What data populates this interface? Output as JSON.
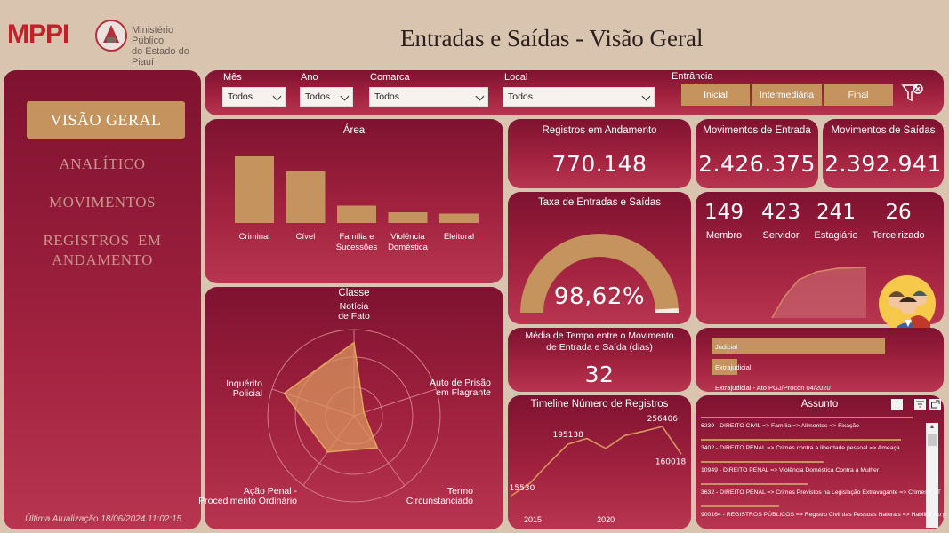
{
  "header": {
    "logo_text": "MPPI",
    "logo_sub_line1": "Ministério Público",
    "logo_sub_line2": "do Estado do Piauí",
    "title": "Entradas e Saídas - Visão Geral"
  },
  "nav": {
    "active": "VISÃO GERAL",
    "items": [
      "ANALÍTICO",
      "MOVIMENTOS",
      "REGISTROS  EM",
      "ANDAMENTO"
    ],
    "footer": "Última Atualização 18/06/2024 11:02:15"
  },
  "filters": {
    "mes": {
      "label": "Mês",
      "value": "Todos"
    },
    "ano": {
      "label": "Ano",
      "value": "Todos"
    },
    "comarca": {
      "label": "Comarca",
      "value": "Todos"
    },
    "local": {
      "label": "Local",
      "value": "Todos"
    },
    "entrancia": {
      "label": "Entrância",
      "options": [
        "Inicial",
        "Intermediária",
        "Final"
      ]
    }
  },
  "kpis": {
    "andamento": {
      "title": "Registros em Andamento",
      "value": "770.148"
    },
    "entrada": {
      "title": "Movimentos de Entrada",
      "value": "2.426.375"
    },
    "saidas": {
      "title": "Movimentos de Saídas",
      "value": "2.392.941"
    },
    "taxa": {
      "title": "Taxa de Entradas e Saídas",
      "value": "98,62%"
    },
    "media": {
      "title_line1": "Média de Tempo entre o Movimento",
      "title_line2": "de Entrada e Saída (dias)",
      "value": "32"
    }
  },
  "staff": [
    {
      "value": "149",
      "label": "Membro"
    },
    {
      "value": "423",
      "label": "Servidor"
    },
    {
      "value": "241",
      "label": "Estagiário"
    },
    {
      "value": "26",
      "label": "Terceirizado"
    }
  ],
  "assunto": {
    "title": "Assunto",
    "rows": [
      {
        "text": "6239 - DIREITO CIVIL => Família => Alimentos => Fixação",
        "fill": 0.95
      },
      {
        "text": "3402 - DIREITO PENAL => Crimes contra a liberdade pessoal => Ameaça",
        "fill": 0.9
      },
      {
        "text": "10949 - DIREITO PENAL => Violência Doméstica Contra a Mulher",
        "fill": 0.55
      },
      {
        "text": "3632 - DIREITO PENAL => Crimes Previstos na Legislação Extravagante => Crimes de T",
        "fill": 0.48
      },
      {
        "text": "900164 - REGISTROS PÚBLICOS => Registro Civil das Pessoas Naturais => Habilitação p",
        "fill": 0.35
      }
    ]
  },
  "entrancia_bars": [
    {
      "label": "Judicial",
      "fill": 0.95
    },
    {
      "label": "Extrajudicial",
      "fill": 0.14
    },
    {
      "label": "Extrajudicial - Ato PGJ/Procon 04/2020",
      "fill": 0.02
    }
  ],
  "chart_data": [
    {
      "type": "bar",
      "title": "Área",
      "categories": [
        "Criminal",
        "Cível",
        "Família e Sucessões",
        "Violência Doméstica",
        "Eleitoral"
      ],
      "values": [
        100,
        78,
        26,
        16,
        14
      ]
    },
    {
      "type": "radar",
      "title": "Classe",
      "categories": [
        "Notícia de Fato",
        "Auto de Prisão em Flagrante",
        "Termo Circunstanciado",
        "Ação Penal - Procedimento Ordinário",
        "Inquérito Policial"
      ],
      "category_labels": [
        [
          "Notícia",
          "de Fato"
        ],
        [
          "Auto de Prisão",
          "em Flagrante"
        ],
        [
          "Termo",
          "Circunstanciado"
        ],
        [
          "Ação Penal -",
          "Procedimento Ordinário"
        ],
        [
          "Inquérito",
          "Policial"
        ]
      ],
      "values": [
        0.85,
        0.12,
        0.46,
        0.52,
        0.85
      ]
    },
    {
      "type": "line",
      "title": "Timeline Número de Registros",
      "x": [
        2015,
        2016,
        2017,
        2018,
        2019,
        2020,
        2021,
        2022,
        2023,
        2024
      ],
      "values": [
        15530,
        60000,
        130000,
        195138,
        215000,
        180000,
        225000,
        240000,
        256406,
        160018
      ],
      "data_labels": {
        "0": "15530",
        "3": "195138",
        "8": "256406",
        "9": "160018"
      },
      "x_ticks": [
        "2015",
        "2020"
      ]
    }
  ]
}
